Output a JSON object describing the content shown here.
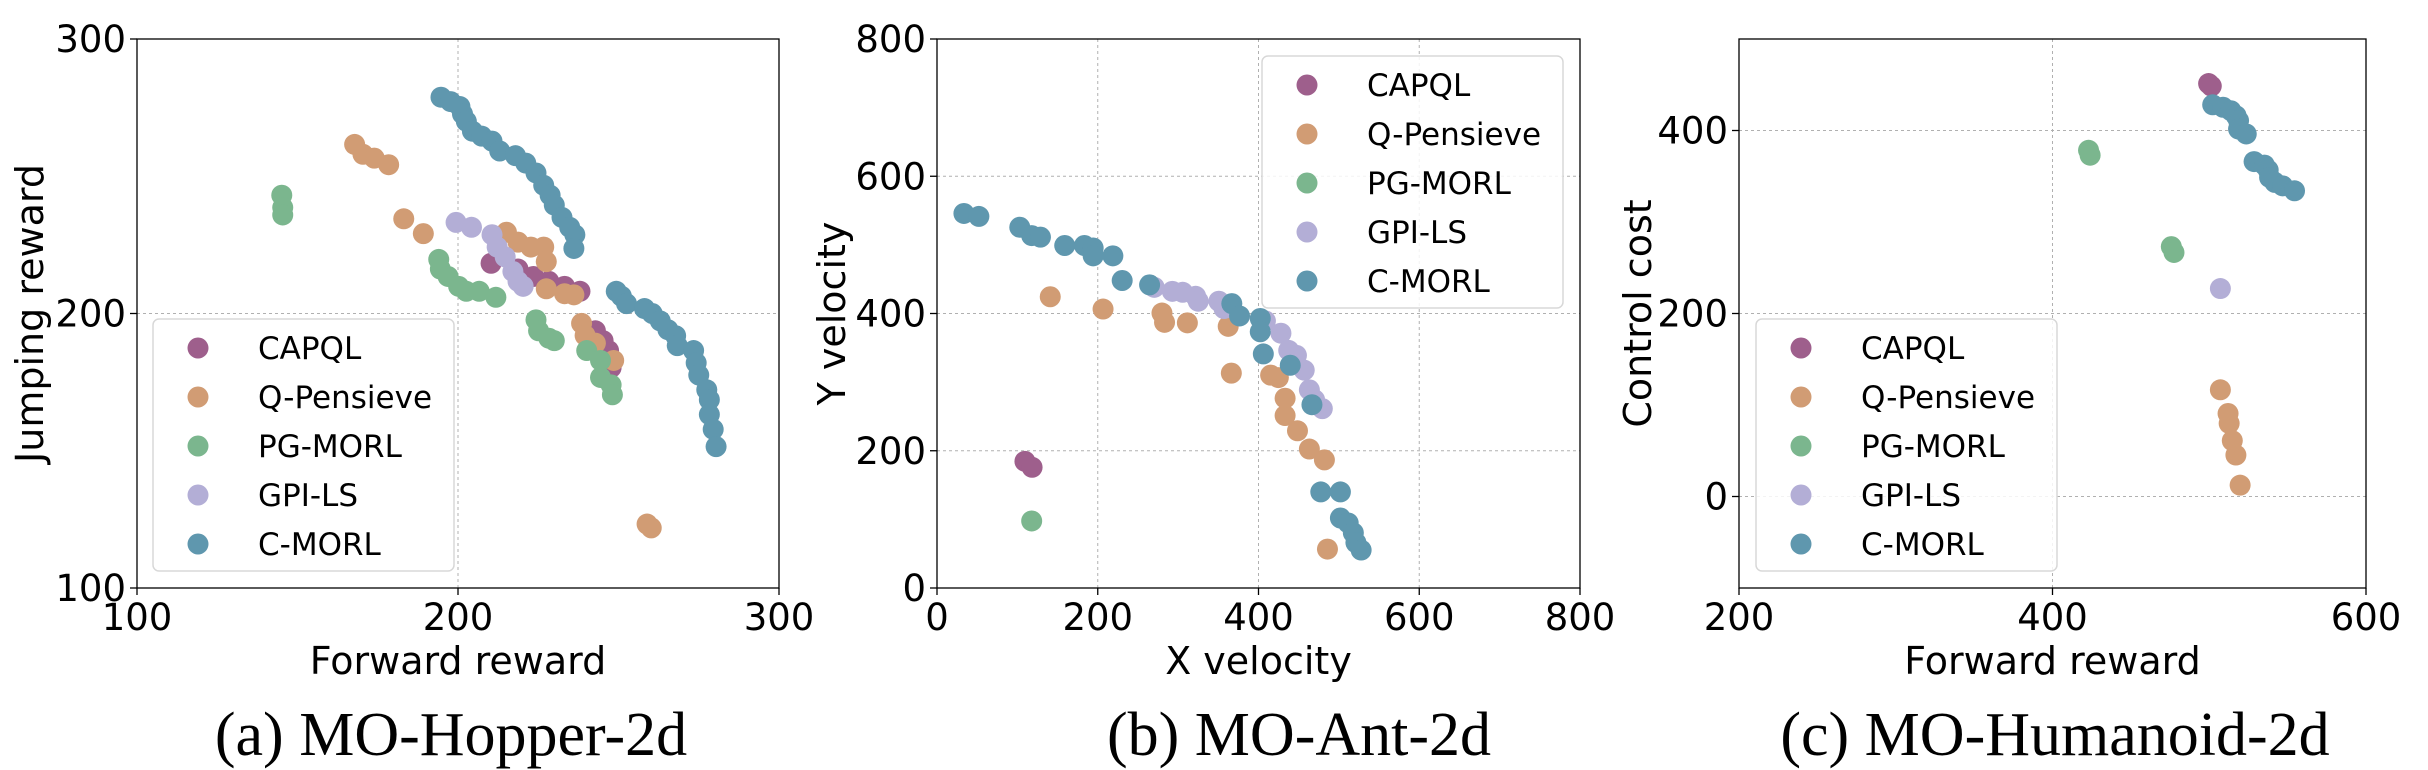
{
  "legend": [
    "CAPQL",
    "Q-Pensieve",
    "PG-MORL",
    "GPI-LS",
    "C-MORL"
  ],
  "colors": {
    "CAPQL": "#9e5f8c",
    "Q-Pensieve": "#d19c74",
    "PG-MORL": "#7bb68e",
    "GPI-LS": "#b3aed6",
    "C-MORL": "#5f97ae"
  },
  "chart_data": [
    {
      "type": "scatter",
      "caption": "(a) MO-Hopper-2d",
      "xlabel": "Forward reward",
      "ylabel": "Jumping reward",
      "xlim": [
        100,
        300
      ],
      "ylim": [
        100,
        300
      ],
      "xticks": [
        100,
        200,
        300
      ],
      "yticks": [
        100,
        200,
        300
      ],
      "grid": true,
      "legend_position": "lower-left",
      "series": [
        {
          "name": "CAPQL",
          "points": [
            [
              210.3,
              218.3
            ],
            [
              218.7,
              216.2
            ],
            [
              223.5,
              213.5
            ],
            [
              228.3,
              211.7
            ],
            [
              233.2,
              209.9
            ],
            [
              238.0,
              208.1
            ],
            [
              242.8,
              193.7
            ],
            [
              245.2,
              190.1
            ],
            [
              246.9,
              186.5
            ],
            [
              247.7,
              180.3
            ]
          ]
        },
        {
          "name": "Q-Pensieve",
          "points": [
            [
              167.8,
              261.6
            ],
            [
              170.4,
              258.0
            ],
            [
              173.9,
              256.6
            ],
            [
              178.4,
              254.2
            ],
            [
              183.1,
              234.5
            ],
            [
              189.2,
              229.1
            ],
            [
              215.1,
              229.6
            ],
            [
              218.7,
              226.0
            ],
            [
              222.7,
              224.2
            ],
            [
              226.7,
              224.2
            ],
            [
              227.5,
              218.9
            ],
            [
              227.5,
              209.0
            ],
            [
              233.2,
              207.2
            ],
            [
              236.1,
              206.8
            ],
            [
              238.5,
              196.4
            ],
            [
              239.6,
              192.0
            ],
            [
              242.8,
              189.2
            ],
            [
              248.5,
              182.9
            ],
            [
              258.9,
              123.3
            ],
            [
              260.2,
              121.9
            ]
          ]
        },
        {
          "name": "PG-MORL",
          "points": [
            [
              145.1,
              243.1
            ],
            [
              145.4,
              238.6
            ],
            [
              145.4,
              235.9
            ],
            [
              194.0,
              219.7
            ],
            [
              194.5,
              216.2
            ],
            [
              196.9,
              213.5
            ],
            [
              200.2,
              209.9
            ],
            [
              202.6,
              208.1
            ],
            [
              206.6,
              208.1
            ],
            [
              211.8,
              205.9
            ],
            [
              224.3,
              197.7
            ],
            [
              225.1,
              193.7
            ],
            [
              228.3,
              191.0
            ],
            [
              230.0,
              190.1
            ],
            [
              240.1,
              186.5
            ],
            [
              244.4,
              182.9
            ],
            [
              244.4,
              176.7
            ],
            [
              247.7,
              174.0
            ],
            [
              248.1,
              170.4
            ]
          ]
        },
        {
          "name": "GPI-LS",
          "points": [
            [
              199.4,
              233.2
            ],
            [
              204.2,
              231.4
            ],
            [
              210.6,
              228.7
            ],
            [
              212.2,
              224.2
            ],
            [
              214.7,
              220.6
            ],
            [
              217.1,
              215.3
            ],
            [
              218.7,
              211.7
            ],
            [
              220.3,
              209.9
            ]
          ]
        },
        {
          "name": "C-MORL",
          "points": [
            [
              194.7,
              278.8
            ],
            [
              197.7,
              277.2
            ],
            [
              200.6,
              275.4
            ],
            [
              201.4,
              272.7
            ],
            [
              202.6,
              270.0
            ],
            [
              204.5,
              266.4
            ],
            [
              207.4,
              264.6
            ],
            [
              210.6,
              262.8
            ],
            [
              213.0,
              259.2
            ],
            [
              217.9,
              257.5
            ],
            [
              221.1,
              254.8
            ],
            [
              224.3,
              251.2
            ],
            [
              226.7,
              246.7
            ],
            [
              228.7,
              243.1
            ],
            [
              230.0,
              239.5
            ],
            [
              232.4,
              235.0
            ],
            [
              234.8,
              231.4
            ],
            [
              236.4,
              228.7
            ],
            [
              236.1,
              223.7
            ],
            [
              249.3,
              208.1
            ],
            [
              250.9,
              206.3
            ],
            [
              252.5,
              203.6
            ],
            [
              258.1,
              201.8
            ],
            [
              260.5,
              200.0
            ],
            [
              263.0,
              197.3
            ],
            [
              265.4,
              194.1
            ],
            [
              267.8,
              191.9
            ],
            [
              268.3,
              188.3
            ],
            [
              273.4,
              186.5
            ],
            [
              274.2,
              182.0
            ],
            [
              275.0,
              177.6
            ],
            [
              277.5,
              172.2
            ],
            [
              278.3,
              168.6
            ],
            [
              278.3,
              163.2
            ],
            [
              279.5,
              157.8
            ],
            [
              280.4,
              151.5
            ]
          ]
        }
      ]
    },
    {
      "type": "scatter",
      "caption": "(b) MO-Ant-2d",
      "xlabel": "X velocity",
      "ylabel": "Y velocity",
      "xlim": [
        0,
        800
      ],
      "ylim": [
        0,
        800
      ],
      "xticks": [
        0,
        200,
        400,
        600,
        800
      ],
      "yticks": [
        0,
        200,
        400,
        600,
        800
      ],
      "grid": true,
      "legend_position": "upper-right",
      "series": [
        {
          "name": "CAPQL",
          "points": [
            [
              109.4,
              184.6
            ],
            [
              118.3,
              175.9
            ]
          ]
        },
        {
          "name": "Q-Pensieve",
          "points": [
            [
              140.9,
              424.4
            ],
            [
              206.6,
              406.5
            ],
            [
              279.9,
              400.7
            ],
            [
              283.1,
              387.1
            ],
            [
              311.5,
              386.4
            ],
            [
              362.3,
              381.3
            ],
            [
              366.2,
              313.1
            ],
            [
              415.1,
              310.2
            ],
            [
              424.7,
              306.6
            ],
            [
              433.1,
              276.5
            ],
            [
              433.1,
              251.3
            ],
            [
              448.5,
              229.1
            ],
            [
              463.3,
              202.5
            ],
            [
              482.0,
              186.7
            ],
            [
              485.8,
              56.7
            ]
          ]
        },
        {
          "name": "PG-MORL",
          "points": [
            [
              117.8,
              97.7
            ]
          ]
        },
        {
          "name": "GPI-LS",
          "points": [
            [
              270.3,
              438.1
            ],
            [
              292.8,
              432.3
            ],
            [
              305.7,
              430.9
            ],
            [
              321.8,
              425.1
            ],
            [
              325.0,
              417.9
            ],
            [
              350.7,
              417.9
            ],
            [
              357.1,
              407.2
            ],
            [
              408.6,
              389.2
            ],
            [
              427.9,
              371.3
            ],
            [
              437.6,
              346.2
            ],
            [
              447.2,
              339.0
            ],
            [
              456.9,
              317.4
            ],
            [
              463.3,
              288.7
            ],
            [
              469.8,
              274.3
            ],
            [
              479.4,
              261.4
            ]
          ]
        },
        {
          "name": "C-MORL",
          "points": [
            [
              33.5,
              545.8
            ],
            [
              52.1,
              541.5
            ],
            [
              103.0,
              525.7
            ],
            [
              117.8,
              513.5
            ],
            [
              128.7,
              511.3
            ],
            [
              158.9,
              499.1
            ],
            [
              183.4,
              499.1
            ],
            [
              194.3,
              495.5
            ],
            [
              194.3,
              484.0
            ],
            [
              218.8,
              484.0
            ],
            [
              230.4,
              448.1
            ],
            [
              264.5,
              441.7
            ],
            [
              366.8,
              414.4
            ],
            [
              376.4,
              396.4
            ],
            [
              402.2,
              392.8
            ],
            [
              402.2,
              373.4
            ],
            [
              406.0,
              341.1
            ],
            [
              439.5,
              324.6
            ],
            [
              466.5,
              267.1
            ],
            [
              477.5,
              140.0
            ],
            [
              501.9,
              140.0
            ],
            [
              501.9,
              102.0
            ],
            [
              511.6,
              94.8
            ],
            [
              518.0,
              80.4
            ],
            [
              521.2,
              66.1
            ],
            [
              527.7,
              55.3
            ]
          ]
        }
      ]
    },
    {
      "type": "scatter",
      "caption": "(c) MO-Humanoid-2d",
      "xlabel": "Forward reward",
      "ylabel": "Control cost",
      "xlim": [
        200,
        600
      ],
      "ylim": [
        -100,
        500
      ],
      "xticks": [
        200,
        400,
        600
      ],
      "yticks": [
        0,
        200,
        400
      ],
      "grid": true,
      "legend_position": "lower-left",
      "series": [
        {
          "name": "CAPQL",
          "points": [
            [
              499.6,
              451.3
            ],
            [
              501.3,
              448.6
            ]
          ]
        },
        {
          "name": "Q-Pensieve",
          "points": [
            [
              507.1,
              116.6
            ],
            [
              512.0,
              90.7
            ],
            [
              512.7,
              79.9
            ],
            [
              514.7,
              61.0
            ],
            [
              517.0,
              45.3
            ],
            [
              519.7,
              12.4
            ]
          ]
        },
        {
          "name": "PG-MORL",
          "points": [
            [
              423.0,
              378.4
            ],
            [
              424.0,
              373.0
            ],
            [
              475.8,
              273.1
            ],
            [
              477.5,
              266.7
            ]
          ]
        },
        {
          "name": "GPI-LS",
          "points": [
            [
              507.1,
              227.3
            ]
          ]
        },
        {
          "name": "C-MORL",
          "points": [
            [
              502.2,
              428.1
            ],
            [
              508.8,
              425.4
            ],
            [
              513.8,
              421.6
            ],
            [
              517.1,
              416.2
            ],
            [
              518.7,
              410.8
            ],
            [
              518.7,
              401.6
            ],
            [
              523.6,
              396.2
            ],
            [
              528.6,
              366.0
            ],
            [
              535.2,
              362.2
            ],
            [
              537.6,
              356.8
            ],
            [
              538.5,
              348.7
            ],
            [
              541.8,
              343.3
            ],
            [
              546.8,
              339.5
            ],
            [
              554.4,
              334.1
            ]
          ]
        }
      ]
    }
  ]
}
